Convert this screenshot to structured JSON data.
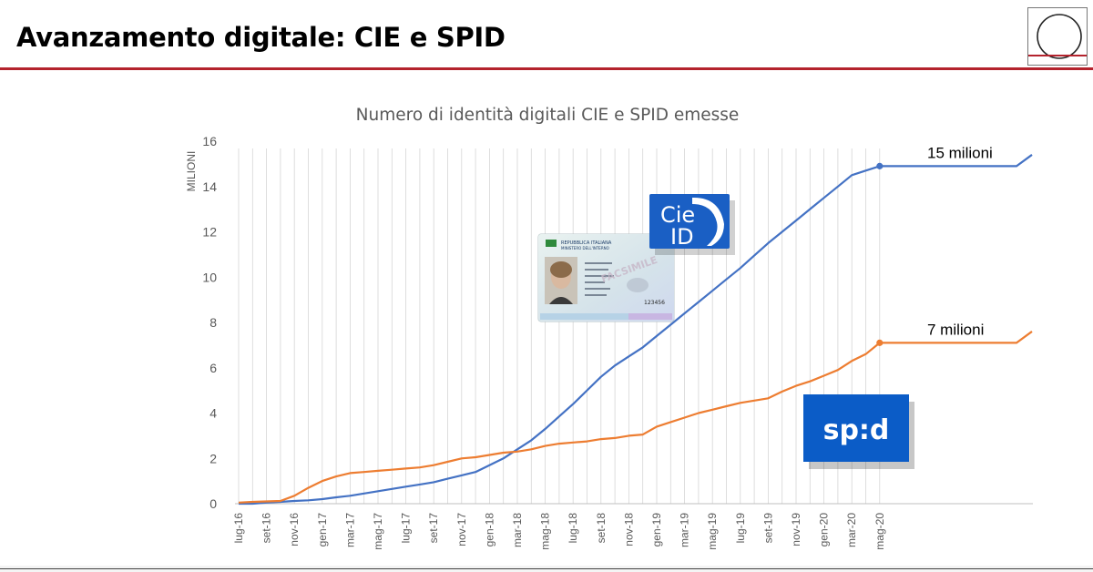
{
  "slide": {
    "title": "Avanzamento digitale: CIE e SPID"
  },
  "colors": {
    "title_rule": "#b4232d",
    "cie_line": "#4472c4",
    "spid_line": "#ed7d31",
    "cie_logo_bg": "#1a5fc4",
    "spid_logo_bg": "#0b5cc7",
    "axis_text": "#595959"
  },
  "images": {
    "cie_logo": {
      "icon": "cie-id-logo-icon",
      "text_line1": "Cie",
      "text_line2": "ID"
    },
    "spid_logo": {
      "icon": "spid-logo-icon",
      "text": "sp:d"
    },
    "id_card": {
      "icon": "identity-card-image",
      "text_line1": "REPUBBLICA ITALIANA",
      "text_line2": "MINISTERO DELL'INTERNO",
      "number": "123456",
      "watermark": "FACSIMILE"
    },
    "top_right_logo": {
      "icon": "circle-logo-icon"
    }
  },
  "chart_data": {
    "type": "line",
    "title": "Numero di identità digitali CIE e SPID emesse",
    "ylabel": "MILIONI",
    "xlabel": "",
    "ylim": [
      0,
      16
    ],
    "yticks": [
      0,
      2,
      4,
      6,
      8,
      10,
      12,
      14,
      16
    ],
    "grid": "vertical",
    "legend": "none",
    "x_tick_labels": [
      "lug-16",
      "set-16",
      "nov-16",
      "gen-17",
      "mar-17",
      "mag-17",
      "lug-17",
      "set-17",
      "nov-17",
      "gen-18",
      "mar-18",
      "mag-18",
      "lug-18",
      "set-18",
      "nov-18",
      "gen-19",
      "mar-19",
      "mag-19",
      "lug-19",
      "set-19",
      "nov-19",
      "gen-20",
      "mar-20",
      "mag-20"
    ],
    "categories": [
      "lug-16",
      "ago-16",
      "set-16",
      "ott-16",
      "nov-16",
      "dic-16",
      "gen-17",
      "feb-17",
      "mar-17",
      "apr-17",
      "mag-17",
      "giu-17",
      "lug-17",
      "ago-17",
      "set-17",
      "ott-17",
      "nov-17",
      "dic-17",
      "gen-18",
      "feb-18",
      "mar-18",
      "apr-18",
      "mag-18",
      "giu-18",
      "lug-18",
      "ago-18",
      "set-18",
      "ott-18",
      "nov-18",
      "dic-18",
      "gen-19",
      "feb-19",
      "mar-19",
      "apr-19",
      "mag-19",
      "giu-19",
      "lug-19",
      "ago-19",
      "set-19",
      "ott-19",
      "nov-19",
      "dic-19",
      "gen-20",
      "feb-20",
      "mar-20",
      "apr-20",
      "mag-20"
    ],
    "series": [
      {
        "name": "CIE",
        "values": [
          0.0,
          0.0,
          0.05,
          0.08,
          0.12,
          0.15,
          0.2,
          0.28,
          0.35,
          0.45,
          0.55,
          0.65,
          0.75,
          0.85,
          0.95,
          1.1,
          1.25,
          1.4,
          1.7,
          2.0,
          2.4,
          2.8,
          3.3,
          3.85,
          4.4,
          5.0,
          5.6,
          6.1,
          6.5,
          6.9,
          7.4,
          7.9,
          8.4,
          8.9,
          9.4,
          9.9,
          10.4,
          10.95,
          11.5,
          12.0,
          12.5,
          13.0,
          13.5,
          14.0,
          14.5,
          14.7,
          14.9
        ],
        "end_label": "15 milioni",
        "after_last": [
          14.9,
          15.4
        ]
      },
      {
        "name": "SPID",
        "values": [
          0.05,
          0.08,
          0.1,
          0.12,
          0.35,
          0.7,
          1.0,
          1.2,
          1.35,
          1.4,
          1.45,
          1.5,
          1.55,
          1.6,
          1.7,
          1.85,
          2.0,
          2.05,
          2.15,
          2.25,
          2.3,
          2.4,
          2.55,
          2.65,
          2.7,
          2.75,
          2.85,
          2.9,
          3.0,
          3.05,
          3.4,
          3.6,
          3.8,
          4.0,
          4.15,
          4.3,
          4.45,
          4.55,
          4.65,
          4.95,
          5.2,
          5.4,
          5.65,
          5.9,
          6.3,
          6.6,
          7.1
        ],
        "end_label": "7 milioni",
        "after_last": [
          7.1,
          7.6
        ]
      }
    ]
  }
}
